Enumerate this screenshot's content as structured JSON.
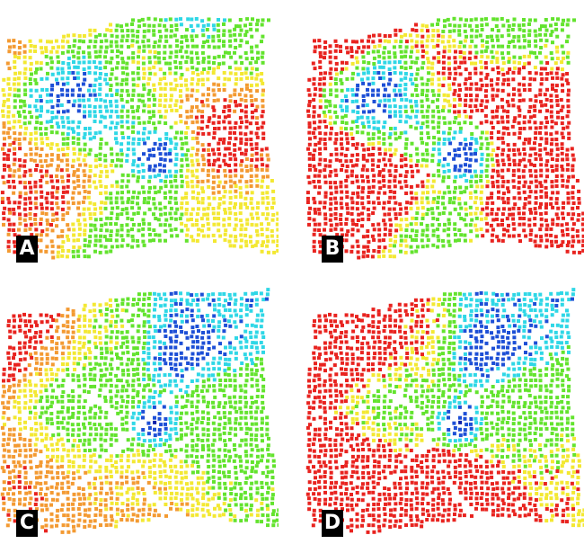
{
  "panels": [
    {
      "label": "A",
      "variant": "smooth"
    },
    {
      "label": "B",
      "variant": "contrast"
    },
    {
      "label": "C",
      "variant": "smooth"
    },
    {
      "label": "D",
      "variant": "contrast"
    }
  ],
  "palette": {
    "red": "#e8231f",
    "orange": "#f39a32",
    "yellow": "#f3e832",
    "green": "#63e32e",
    "cyan": "#2fd7e6",
    "blue": "#1d4fd6",
    "navy": "#0b1fa8",
    "label_bg": "#000000",
    "label_fg": "#ffffff"
  }
}
